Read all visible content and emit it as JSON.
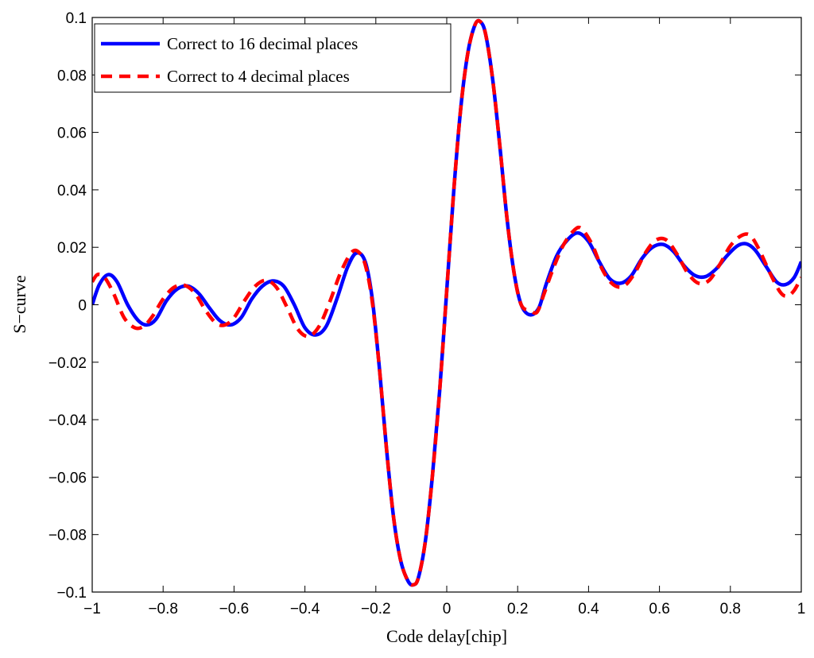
{
  "chart_data": {
    "type": "line",
    "title": "",
    "xlabel": "Code delay[chip]",
    "ylabel": "S−curve",
    "xlim": [
      -1,
      1
    ],
    "ylim": [
      -0.1,
      0.1
    ],
    "x_ticks": [
      -1,
      -0.8,
      -0.6,
      -0.4,
      -0.2,
      0,
      0.2,
      0.4,
      0.6,
      0.8,
      1
    ],
    "x_tick_labels": [
      "−1",
      "−0.8",
      "−0.6",
      "−0.4",
      "−0.2",
      "0",
      "0.2",
      "0.4",
      "0.6",
      "0.8",
      "1"
    ],
    "y_ticks": [
      -0.1,
      -0.08,
      -0.06,
      -0.04,
      -0.02,
      0,
      0.02,
      0.04,
      0.06,
      0.08,
      0.1
    ],
    "y_tick_labels": [
      "−0.1",
      "−0.08",
      "−0.06",
      "−0.04",
      "−0.02",
      "0",
      "0.02",
      "0.04",
      "0.06",
      "0.08",
      "0.1"
    ],
    "grid": false,
    "legend_position": "top-left",
    "series": [
      {
        "name": "Correct to 16 decimal places",
        "color": "#0000ff",
        "style": "solid",
        "points": [
          [
            -1,
            0.0
          ],
          [
            -0.98,
            0.007
          ],
          [
            -0.955,
            0.0105
          ],
          [
            -0.93,
            0.008
          ],
          [
            -0.9,
            0.0
          ],
          [
            -0.87,
            -0.0055
          ],
          [
            -0.845,
            -0.007
          ],
          [
            -0.82,
            -0.005
          ],
          [
            -0.79,
            0.0015
          ],
          [
            -0.76,
            0.0055
          ],
          [
            -0.73,
            0.0065
          ],
          [
            -0.7,
            0.004
          ],
          [
            -0.67,
            -0.001
          ],
          [
            -0.64,
            -0.0055
          ],
          [
            -0.61,
            -0.007
          ],
          [
            -0.58,
            -0.0045
          ],
          [
            -0.55,
            0.002
          ],
          [
            -0.52,
            0.0065
          ],
          [
            -0.49,
            0.0083
          ],
          [
            -0.46,
            0.0065
          ],
          [
            -0.43,
            0.0
          ],
          [
            -0.4,
            -0.008
          ],
          [
            -0.37,
            -0.0105
          ],
          [
            -0.34,
            -0.0075
          ],
          [
            -0.31,
            0.002
          ],
          [
            -0.28,
            0.013
          ],
          [
            -0.255,
            0.018
          ],
          [
            -0.23,
            0.015
          ],
          [
            -0.21,
            0.002
          ],
          [
            -0.19,
            -0.022
          ],
          [
            -0.17,
            -0.05
          ],
          [
            -0.15,
            -0.074
          ],
          [
            -0.13,
            -0.089
          ],
          [
            -0.11,
            -0.096
          ],
          [
            -0.095,
            -0.0975
          ],
          [
            -0.08,
            -0.095
          ],
          [
            -0.06,
            -0.082
          ],
          [
            -0.04,
            -0.059
          ],
          [
            -0.02,
            -0.03
          ],
          [
            0.0,
            0.005
          ],
          [
            0.02,
            0.04
          ],
          [
            0.04,
            0.069
          ],
          [
            0.06,
            0.088
          ],
          [
            0.08,
            0.0975
          ],
          [
            0.095,
            0.0985
          ],
          [
            0.11,
            0.094
          ],
          [
            0.13,
            0.078
          ],
          [
            0.15,
            0.055
          ],
          [
            0.17,
            0.03
          ],
          [
            0.19,
            0.011
          ],
          [
            0.21,
            0.0
          ],
          [
            0.235,
            -0.0035
          ],
          [
            0.26,
            -0.001
          ],
          [
            0.28,
            0.007
          ],
          [
            0.31,
            0.017
          ],
          [
            0.34,
            0.0225
          ],
          [
            0.37,
            0.025
          ],
          [
            0.4,
            0.022
          ],
          [
            0.43,
            0.015
          ],
          [
            0.46,
            0.009
          ],
          [
            0.49,
            0.0075
          ],
          [
            0.52,
            0.01
          ],
          [
            0.55,
            0.016
          ],
          [
            0.58,
            0.02
          ],
          [
            0.61,
            0.021
          ],
          [
            0.64,
            0.0185
          ],
          [
            0.67,
            0.0135
          ],
          [
            0.7,
            0.0102
          ],
          [
            0.73,
            0.0098
          ],
          [
            0.76,
            0.0125
          ],
          [
            0.79,
            0.017
          ],
          [
            0.82,
            0.0205
          ],
          [
            0.845,
            0.0212
          ],
          [
            0.87,
            0.019
          ],
          [
            0.9,
            0.0135
          ],
          [
            0.93,
            0.008
          ],
          [
            0.955,
            0.007
          ],
          [
            0.98,
            0.0095
          ],
          [
            1.0,
            0.015
          ]
        ]
      },
      {
        "name": "Correct to 4 decimal places",
        "color": "#ff0000",
        "style": "dashed",
        "points": [
          [
            -1,
            0.008
          ],
          [
            -0.985,
            0.0105
          ],
          [
            -0.965,
            0.0095
          ],
          [
            -0.94,
            0.004
          ],
          [
            -0.91,
            -0.0045
          ],
          [
            -0.88,
            -0.008
          ],
          [
            -0.855,
            -0.0075
          ],
          [
            -0.83,
            -0.004
          ],
          [
            -0.8,
            0.002
          ],
          [
            -0.77,
            0.006
          ],
          [
            -0.74,
            0.0068
          ],
          [
            -0.71,
            0.004
          ],
          [
            -0.68,
            -0.002
          ],
          [
            -0.65,
            -0.0065
          ],
          [
            -0.625,
            -0.007
          ],
          [
            -0.6,
            -0.0045
          ],
          [
            -0.57,
            0.0015
          ],
          [
            -0.54,
            0.0065
          ],
          [
            -0.51,
            0.0085
          ],
          [
            -0.48,
            0.006
          ],
          [
            -0.45,
            -0.001
          ],
          [
            -0.42,
            -0.0085
          ],
          [
            -0.39,
            -0.011
          ],
          [
            -0.36,
            -0.0075
          ],
          [
            -0.33,
            0.001
          ],
          [
            -0.3,
            0.011
          ],
          [
            -0.27,
            0.018
          ],
          [
            -0.25,
            0.0185
          ],
          [
            -0.23,
            0.014
          ],
          [
            -0.21,
            0.001
          ],
          [
            -0.19,
            -0.022
          ],
          [
            -0.17,
            -0.05
          ],
          [
            -0.15,
            -0.074
          ],
          [
            -0.13,
            -0.089
          ],
          [
            -0.11,
            -0.096
          ],
          [
            -0.095,
            -0.0975
          ],
          [
            -0.08,
            -0.095
          ],
          [
            -0.06,
            -0.082
          ],
          [
            -0.04,
            -0.059
          ],
          [
            -0.02,
            -0.03
          ],
          [
            0.0,
            0.005
          ],
          [
            0.02,
            0.04
          ],
          [
            0.04,
            0.069
          ],
          [
            0.06,
            0.088
          ],
          [
            0.08,
            0.0975
          ],
          [
            0.095,
            0.0985
          ],
          [
            0.11,
            0.094
          ],
          [
            0.13,
            0.078
          ],
          [
            0.15,
            0.055
          ],
          [
            0.17,
            0.03
          ],
          [
            0.19,
            0.011
          ],
          [
            0.21,
            0.0
          ],
          [
            0.235,
            -0.002
          ],
          [
            0.255,
            -0.0025
          ],
          [
            0.275,
            0.004
          ],
          [
            0.3,
            0.0125
          ],
          [
            0.33,
            0.021
          ],
          [
            0.36,
            0.026
          ],
          [
            0.38,
            0.0265
          ],
          [
            0.41,
            0.021
          ],
          [
            0.44,
            0.012
          ],
          [
            0.47,
            0.007
          ],
          [
            0.5,
            0.0065
          ],
          [
            0.53,
            0.011
          ],
          [
            0.56,
            0.018
          ],
          [
            0.59,
            0.0225
          ],
          [
            0.62,
            0.0225
          ],
          [
            0.65,
            0.0175
          ],
          [
            0.68,
            0.011
          ],
          [
            0.71,
            0.0075
          ],
          [
            0.74,
            0.0085
          ],
          [
            0.77,
            0.014
          ],
          [
            0.8,
            0.0205
          ],
          [
            0.83,
            0.024
          ],
          [
            0.855,
            0.0242
          ],
          [
            0.88,
            0.0195
          ],
          [
            0.91,
            0.0115
          ],
          [
            0.94,
            0.0045
          ],
          [
            0.96,
            0.003
          ],
          [
            0.98,
            0.005
          ],
          [
            1.0,
            0.0095
          ]
        ]
      }
    ]
  }
}
